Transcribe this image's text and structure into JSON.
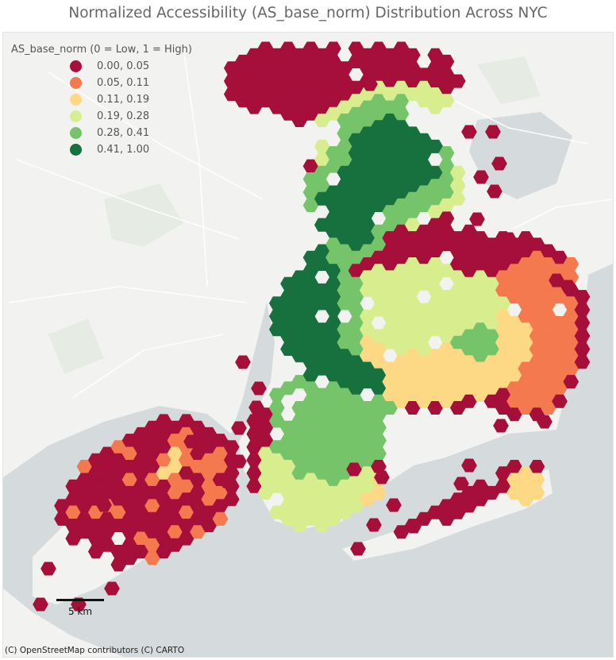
{
  "title": "Normalized Accessibility (AS_base_norm) Distribution Across NYC",
  "legend": {
    "title": "AS_base_norm (0 = Low, 1 = High)",
    "classes": [
      {
        "label": "0.00, 0.05",
        "color": "#a50f3a"
      },
      {
        "label": "0.05, 0.11",
        "color": "#f4794e"
      },
      {
        "label": "0.11, 0.19",
        "color": "#fdd985"
      },
      {
        "label": "0.19, 0.28",
        "color": "#d8ee8e"
      },
      {
        "label": "0.28, 0.41",
        "color": "#76c46a"
      },
      {
        "label": "0.41, 1.00",
        "color": "#16713e"
      }
    ]
  },
  "scale_bar": "5 km",
  "attribution": "(C) OpenStreetMap contributors (C) CARTO",
  "basemap_colors": {
    "water": "#d5dadc",
    "land": "#f2f3f1",
    "park": "#e6ece4"
  }
}
